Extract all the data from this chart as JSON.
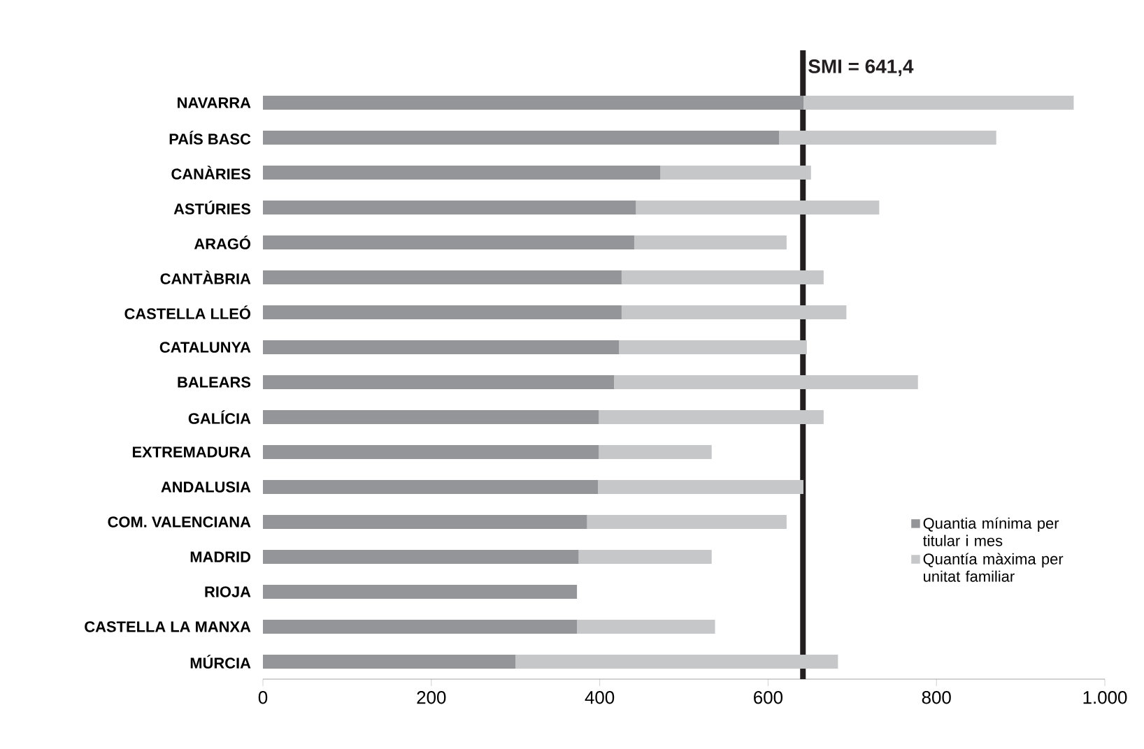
{
  "chart_data": {
    "type": "bar",
    "orientation": "horizontal",
    "stacked": true,
    "categories": [
      "NAVARRA",
      "PAÍS BASC",
      "CANÀRIES",
      "ASTÚRIES",
      "ARAGÓ",
      "CANTÀBRIA",
      "CASTELLA LLEÓ",
      "CATALUNYA",
      "BALEARS",
      "GALÍCIA",
      "EXTREMADURA",
      "ANDALUSIA",
      "COM. VALENCIANA",
      "MADRID",
      "RIOJA",
      "CASTELLA LA MANXA",
      "MÚRCIA"
    ],
    "series": [
      {
        "name": "Quantia mínima per titular i mes",
        "color": "#939598",
        "values": [
          642,
          613,
          472,
          443,
          441,
          426,
          426,
          423,
          417,
          399,
          399,
          398,
          385,
          375,
          373,
          373,
          300
        ]
      },
      {
        "name": "Quantía màxima per unitat familiar",
        "color": "#c6c7c9",
        "values": [
          321,
          258,
          179,
          289,
          181,
          240,
          267,
          223,
          361,
          267,
          134,
          244,
          237,
          158,
          0,
          164,
          383
        ]
      }
    ],
    "xlim": [
      0,
      1000
    ],
    "xticks": [
      0,
      200,
      400,
      600,
      800,
      {
        "value": 1000,
        "label": "1.000"
      }
    ],
    "ref_lines": [
      {
        "axis": "x",
        "value": 641.4,
        "label": "SMI = 641,4",
        "color": "#231f20"
      }
    ],
    "legend": "right",
    "grid": false
  }
}
